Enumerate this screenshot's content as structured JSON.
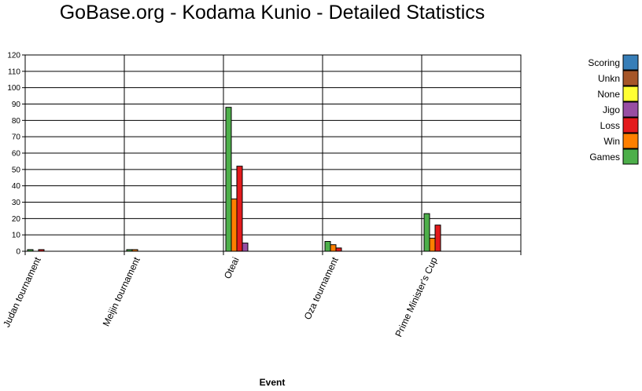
{
  "chart_data": {
    "type": "bar",
    "title": "GoBase.org - Kodama Kunio - Detailed Statistics",
    "xlabel": "Event",
    "ylabel": "",
    "ylim": [
      0,
      120
    ],
    "yticks": [
      0,
      10,
      20,
      30,
      40,
      50,
      60,
      70,
      80,
      90,
      100,
      110,
      120
    ],
    "grid": true,
    "legend_position": "right",
    "categories": [
      "Judan tournament",
      "Meijin tournament",
      "Oteai",
      "Oza tournament",
      "Prime Minister's Cup"
    ],
    "series": [
      {
        "name": "Games",
        "color": "#4daf4a",
        "values": [
          1,
          1,
          88,
          6,
          23
        ]
      },
      {
        "name": "Win",
        "color": "#ff7f00",
        "values": [
          0,
          1,
          32,
          4,
          8
        ]
      },
      {
        "name": "Loss",
        "color": "#e41a1c",
        "values": [
          1,
          0,
          52,
          2,
          16
        ]
      },
      {
        "name": "Jigo",
        "color": "#984ea3",
        "values": [
          0,
          0,
          5,
          0,
          0
        ]
      },
      {
        "name": "None",
        "color": "#ffff33",
        "values": [
          0,
          0,
          0,
          0,
          0
        ]
      },
      {
        "name": "Unkn",
        "color": "#a65628",
        "values": [
          0,
          0,
          0,
          0,
          0
        ]
      },
      {
        "name": "Scoring",
        "color": "#377eb8",
        "values": [
          0,
          0,
          0,
          0,
          0
        ]
      }
    ],
    "legend_order": [
      "Scoring",
      "Unkn",
      "None",
      "Jigo",
      "Loss",
      "Win",
      "Games"
    ]
  }
}
